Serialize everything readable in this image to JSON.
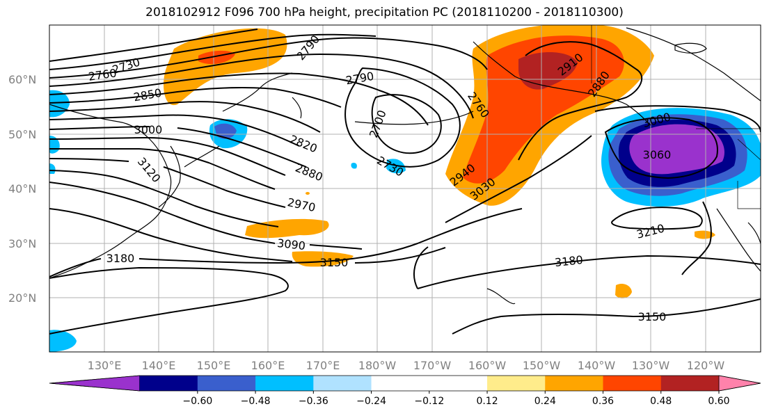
{
  "title": "2018102912 F096 700 hPa height, precipitation PC (2018110200 - 2018110300)",
  "lat_labels": [
    "60°N",
    "50°N",
    "40°N",
    "30°N",
    "20°N"
  ],
  "lon_labels": [
    "130°E",
    "140°E",
    "150°E",
    "160°E",
    "170°E",
    "180°W",
    "170°W",
    "160°W",
    "150°W",
    "140°W",
    "130°W",
    "120°W"
  ],
  "contour_labels": [
    "2730",
    "2760",
    "2790",
    "2790",
    "2850",
    "3000",
    "3120",
    "2820",
    "2880",
    "2970",
    "3090",
    "3150",
    "3180",
    "2700",
    "2730",
    "2760",
    "2910",
    "2880",
    "2940",
    "3030",
    "3060",
    "3000",
    "3210",
    "3180",
    "3150"
  ],
  "colorbar": {
    "colors": [
      "#9a32cd",
      "#00008b",
      "#3a5fcd",
      "#00bfff",
      "#b0e2ff",
      "#ffffff",
      "#ffffff",
      "#ffec8b",
      "#ffa500",
      "#ff4500",
      "#b22222",
      "#ff82ab"
    ],
    "tick_labels": [
      "−0.60",
      "−0.48",
      "−0.36",
      "−0.24",
      "−0.12",
      "0.12",
      "0.24",
      "0.36",
      "0.48",
      "0.60"
    ]
  }
}
